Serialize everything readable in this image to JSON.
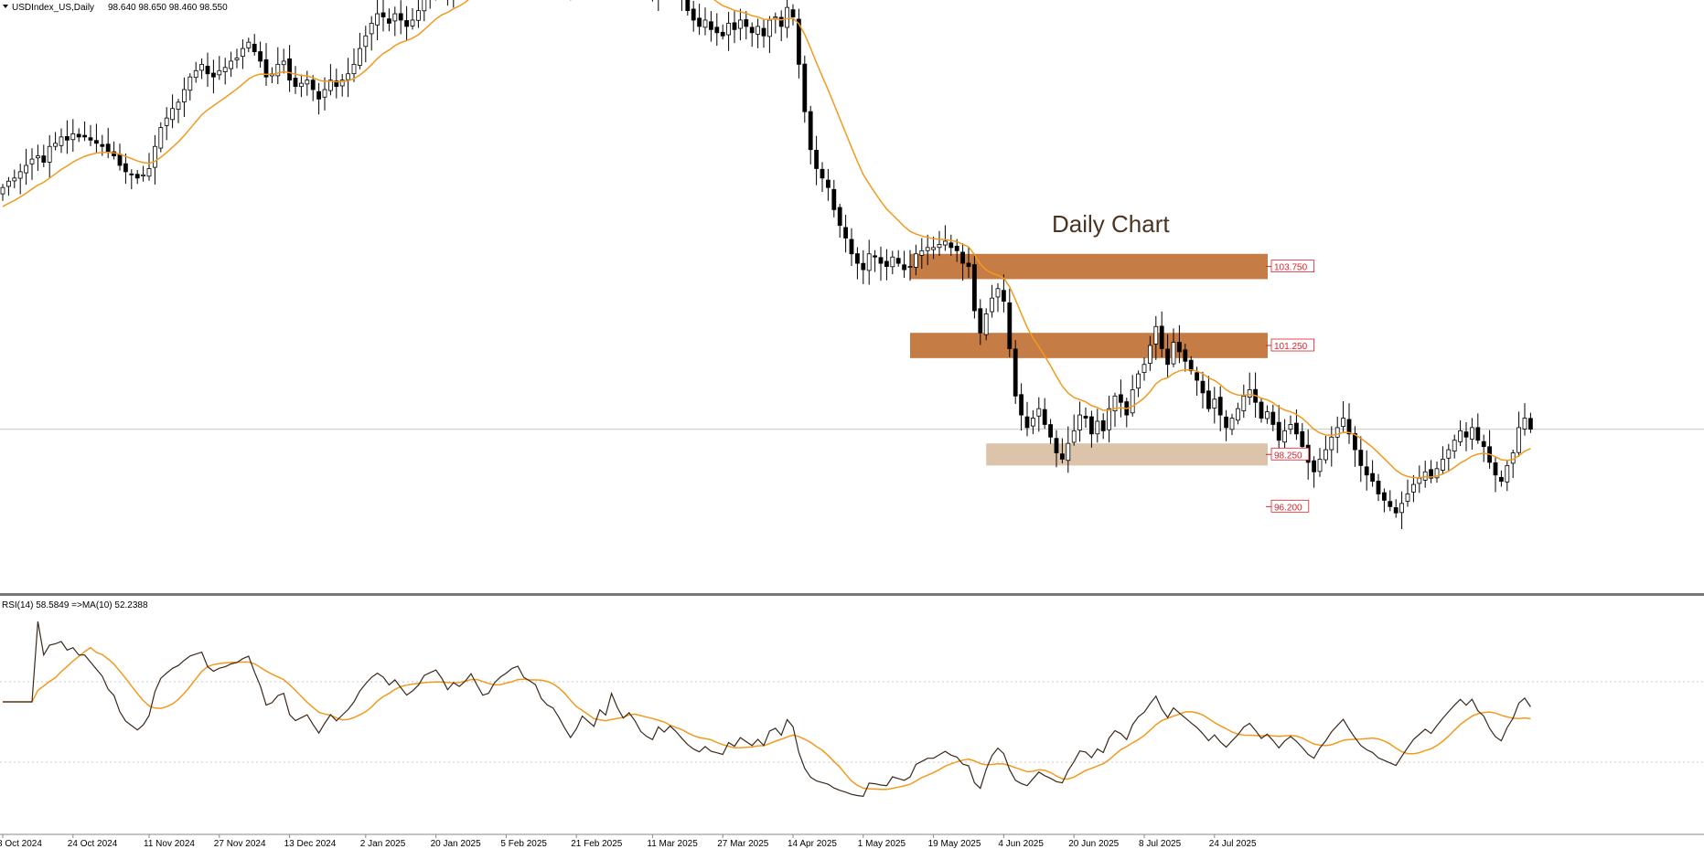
{
  "chart_data": [
    {
      "type": "candlestick",
      "title": "USDIndex_US,Daily",
      "ohlc_label": "98.640 98.650 98.460 98.550",
      "annotation": "Daily Chart",
      "ylim": [
        94.2,
        110.4
      ],
      "current_price": 98.55,
      "overlay": {
        "name": "MA",
        "color": "#f39a1e"
      },
      "zones": [
        {
          "label": "103.750",
          "low": 103.3,
          "high": 104.1,
          "start_index": 155,
          "color": "#c67c45"
        },
        {
          "label": "101.250",
          "low": 100.8,
          "high": 101.6,
          "start_index": 155,
          "color": "#c67c45"
        },
        {
          "label": "98.250",
          "low": 97.4,
          "high": 98.1,
          "start_index": 168,
          "color": "#dbc4a9"
        },
        {
          "label": "96.200",
          "low": 95.9,
          "high": 96.3,
          "start_index": 232,
          "color": "#dbc4a9"
        }
      ],
      "closes": [
        106.2,
        106.4,
        106.5,
        106.7,
        106.9,
        107.1,
        107.2,
        107.0,
        107.5,
        107.6,
        107.8,
        107.7,
        107.9,
        107.8,
        107.8,
        107.7,
        107.6,
        107.5,
        107.3,
        107.2,
        106.9,
        106.7,
        106.6,
        106.5,
        106.6,
        106.8,
        107.5,
        108.1,
        108.4,
        108.7,
        108.9,
        109.3,
        109.7,
        109.9,
        110.1,
        109.8,
        109.7,
        109.9,
        110.0,
        110.2,
        110.3,
        110.6,
        110.8,
        110.5,
        110.2,
        109.7,
        109.8,
        110.1,
        110.2,
        109.6,
        109.4,
        109.5,
        109.6,
        109.3,
        109.0,
        109.3,
        109.6,
        109.4,
        109.6,
        109.8,
        110.1,
        110.6,
        111.0,
        111.4,
        111.7,
        111.6,
        111.4,
        111.7,
        111.5,
        111.3,
        111.5,
        111.8,
        112.4,
        112.6,
        112.8,
        112.6,
        112.3,
        112.7,
        112.6,
        112.9,
        113.4,
        113.1,
        112.8,
        112.9,
        113.5,
        113.9,
        114.2,
        114.6,
        114.8,
        114.5,
        114.4,
        114.3,
        113.9,
        113.7,
        113.6,
        113.3,
        112.9,
        112.5,
        112.8,
        113.3,
        113.1,
        112.9,
        113.6,
        113.4,
        114.6,
        114.0,
        113.5,
        113.8,
        113.4,
        112.8,
        112.5,
        112.3,
        112.9,
        112.6,
        112.9,
        112.6,
        112.2,
        111.8,
        111.5,
        111.3,
        111.5,
        111.2,
        111.1,
        111.0,
        111.4,
        111.2,
        111.5,
        111.3,
        111.1,
        111.3,
        111.0,
        111.5,
        111.6,
        111.3,
        111.9,
        111.6,
        110.1,
        108.6,
        107.4,
        106.8,
        106.5,
        106.2,
        105.5,
        105.0,
        104.6,
        104.1,
        103.8,
        103.6,
        104.1,
        104.0,
        103.8,
        103.7,
        104.0,
        103.8,
        103.6,
        103.7,
        104.1,
        104.2,
        104.3,
        104.3,
        104.4,
        104.5,
        104.3,
        104.2,
        103.8,
        103.7,
        102.3,
        101.6,
        102.2,
        102.7,
        103.0,
        102.6,
        101.1,
        99.6,
        99.0,
        98.6,
        98.9,
        99.2,
        98.7,
        98.3,
        97.8,
        97.6,
        98.1,
        98.5,
        99.0,
        98.9,
        98.4,
        98.8,
        98.5,
        99.2,
        99.6,
        99.4,
        99.0,
        99.8,
        100.3,
        100.6,
        101.2,
        101.8,
        101.1,
        100.6,
        101.3,
        101.0,
        100.7,
        100.4,
        100.1,
        99.7,
        99.2,
        99.5,
        99.0,
        98.6,
        98.9,
        99.2,
        99.6,
        99.8,
        99.4,
        98.9,
        99.1,
        98.7,
        98.2,
        98.5,
        98.7,
        98.4,
        98.0,
        97.5,
        97.2,
        97.6,
        97.9,
        98.3,
        98.6,
        98.9,
        98.4,
        97.9,
        97.4,
        97.1,
        96.9,
        96.5,
        96.3,
        96.1,
        95.9,
        96.2,
        96.5,
        96.8,
        97.0,
        97.2,
        97.0,
        97.3,
        97.6,
        97.9,
        98.2,
        98.5,
        98.3,
        98.6,
        98.2,
        98.0,
        97.5,
        97.1,
        96.9,
        97.4,
        97.8,
        98.6,
        98.9,
        98.55
      ],
      "x_ticks": [
        {
          "label": "8 Oct 2024",
          "index": 0
        },
        {
          "label": "24 Oct 2024",
          "index": 12
        },
        {
          "label": "11 Nov 2024",
          "index": 25
        },
        {
          "label": "27 Nov 2024",
          "index": 37
        },
        {
          "label": "13 Dec 2024",
          "index": 49
        },
        {
          "label": "2 Jan 2025",
          "index": 62
        },
        {
          "label": "20 Jan 2025",
          "index": 74
        },
        {
          "label": "5 Feb 2025",
          "index": 86
        },
        {
          "label": "21 Feb 2025",
          "index": 98
        },
        {
          "label": "11 Mar 2025",
          "index": 111
        },
        {
          "label": "27 Mar 2025",
          "index": 123
        },
        {
          "label": "14 Apr 2025",
          "index": 135
        },
        {
          "label": "1 May 2025",
          "index": 147
        },
        {
          "label": "19 May 2025",
          "index": 159
        },
        {
          "label": "4 Jun 2025",
          "index": 171
        },
        {
          "label": "20 Jun 2025",
          "index": 183
        },
        {
          "label": "8 Jul 2025",
          "index": 195
        },
        {
          "label": "24 Jul 2025",
          "index": 207
        }
      ]
    },
    {
      "type": "line",
      "title": "RSI(14) 58.5849  =>MA(10) 52.2388",
      "ylim": [
        0,
        100
      ],
      "levels": [
        70,
        30
      ],
      "series": [
        {
          "name": "RSI(14)",
          "color": "#3a2a1c"
        },
        {
          "name": "MA(10)",
          "color": "#f39a1e"
        }
      ]
    }
  ]
}
